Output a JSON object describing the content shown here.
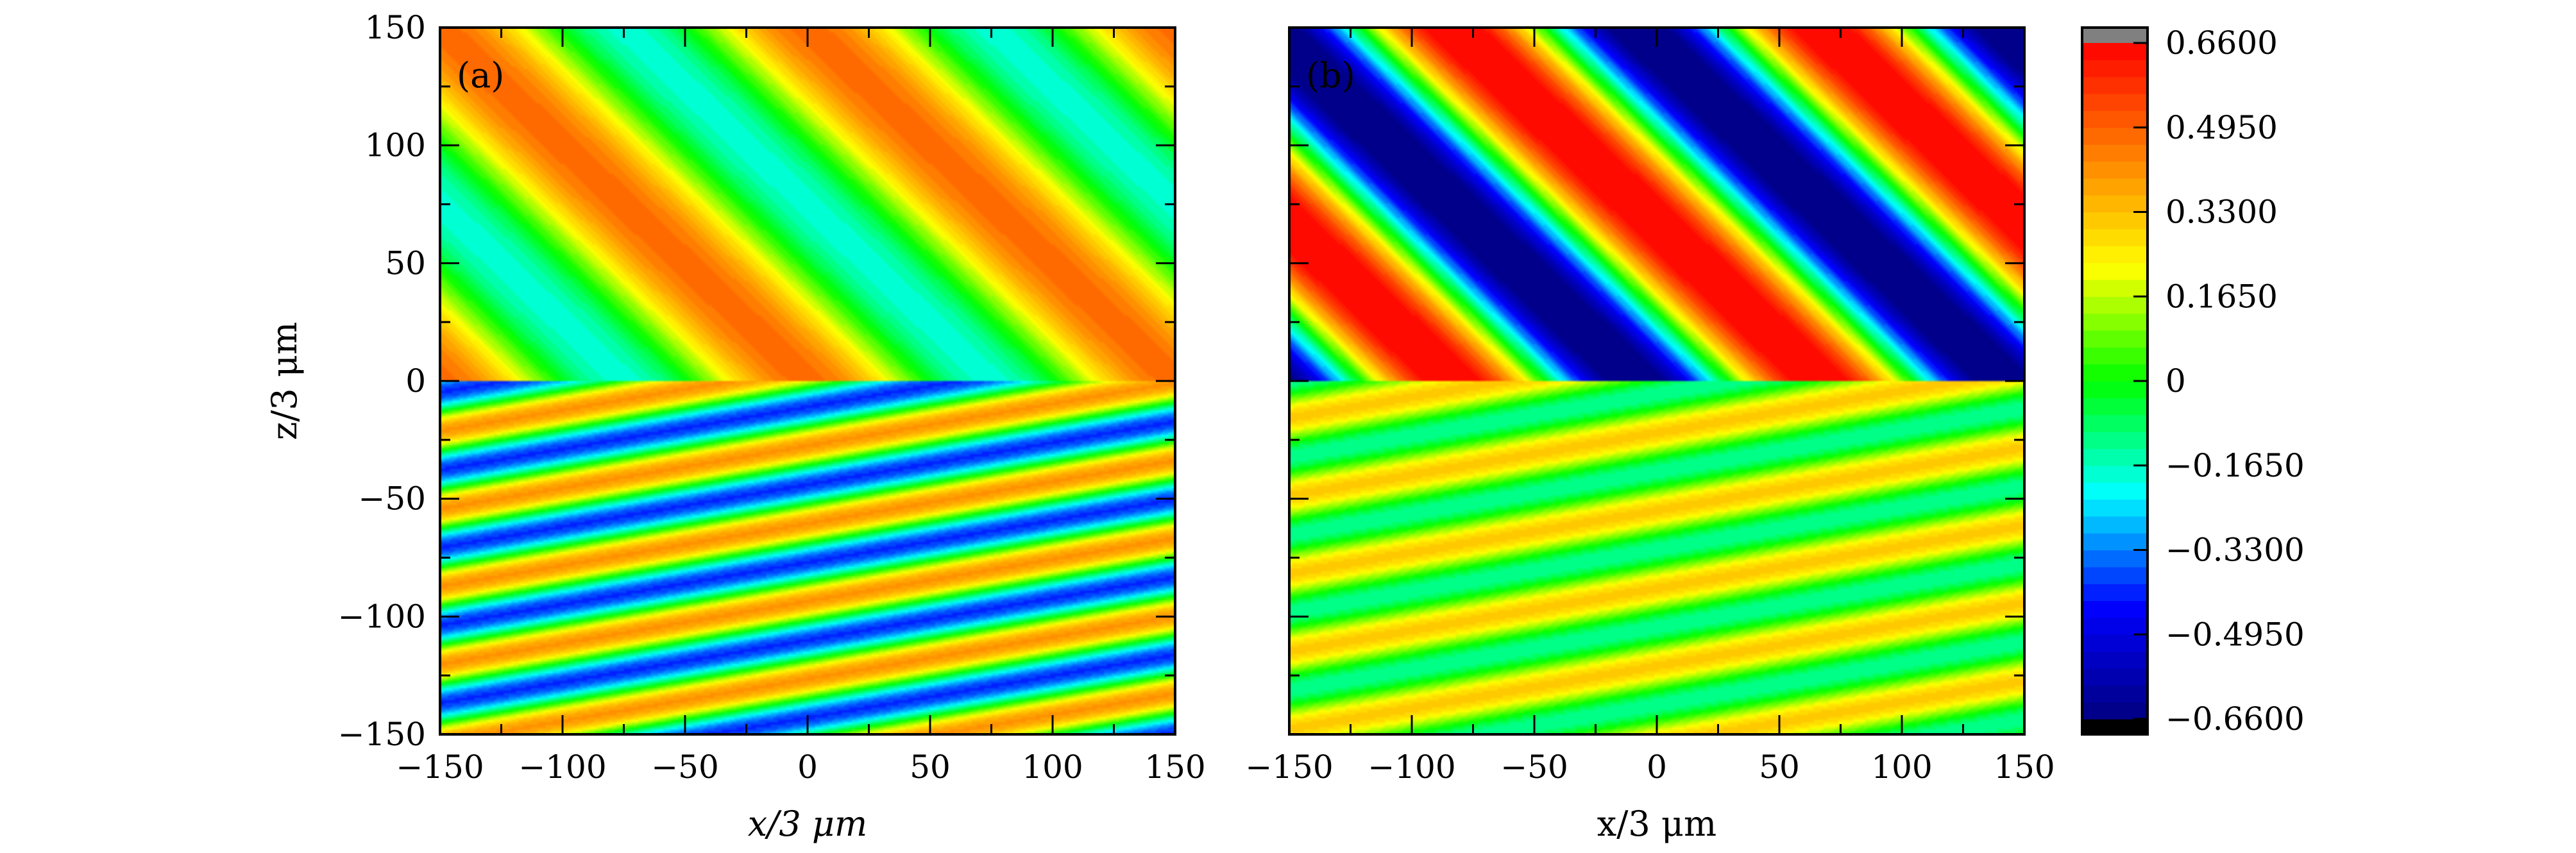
{
  "chart_data": [
    {
      "type": "heatmap",
      "panel_label": "(a)",
      "xlabel": "x/3 μm",
      "ylabel": "z/3 μm",
      "xlim": [
        -150,
        150
      ],
      "ylim": [
        -150,
        150
      ],
      "x_ticks": [
        -150,
        -100,
        -50,
        0,
        50,
        100,
        150
      ],
      "y_ticks": [
        -150,
        -100,
        -50,
        0,
        50,
        100,
        150
      ],
      "x_tick_labels": [
        "−150",
        "−100",
        "−50",
        "0",
        "50",
        "100",
        "150"
      ],
      "y_tick_labels": [
        "−150",
        "−100",
        "−50",
        "0",
        "50",
        "100",
        "150"
      ],
      "field": {
        "upper": {
          "amplitude": 0.33,
          "offset": 0.15,
          "period_x": 150,
          "direction": "descending",
          "phase_deg": 0
        },
        "lower": {
          "amplitude": 0.4,
          "offset": 0.0,
          "period_x": 185,
          "period_z": 33,
          "direction": "ascending",
          "phase_deg": 60
        }
      }
    },
    {
      "type": "heatmap",
      "panel_label": "(b)",
      "xlabel": "x/3 μm",
      "ylabel": "",
      "xlim": [
        -150,
        150
      ],
      "ylim": [
        -150,
        150
      ],
      "x_ticks": [
        -150,
        -100,
        -50,
        0,
        50,
        100,
        150
      ],
      "y_ticks": [
        -150,
        -100,
        -50,
        0,
        50,
        100,
        150
      ],
      "x_tick_labels": [
        "−150",
        "−100",
        "−50",
        "0",
        "50",
        "100",
        "150"
      ],
      "field": {
        "upper": {
          "amplitude": 0.72,
          "offset": 0.0,
          "period_x": 150,
          "direction": "descending",
          "phase_deg": 200
        },
        "lower": {
          "amplitude": 0.22,
          "offset": 0.09,
          "period_x": 185,
          "period_z": 33,
          "direction": "ascending",
          "phase_deg": 120
        }
      }
    }
  ],
  "colorbar": {
    "range": [
      -0.66,
      0.66
    ],
    "levels": 40,
    "over_color": "#808080",
    "under_color": "#000000",
    "colormap": [
      "#000080",
      "#0000ff",
      "#00ffff",
      "#00ff00",
      "#ffff00",
      "#ff8000",
      "#ff0000"
    ],
    "ticks": [
      0.66,
      0.495,
      0.33,
      0.165,
      0,
      -0.165,
      -0.33,
      -0.495,
      -0.66
    ],
    "tick_labels": [
      "0.6600",
      "0.4950",
      "0.3300",
      "0.1650",
      "0",
      "−0.1650",
      "−0.3300",
      "−0.4950",
      "−0.6600"
    ]
  }
}
